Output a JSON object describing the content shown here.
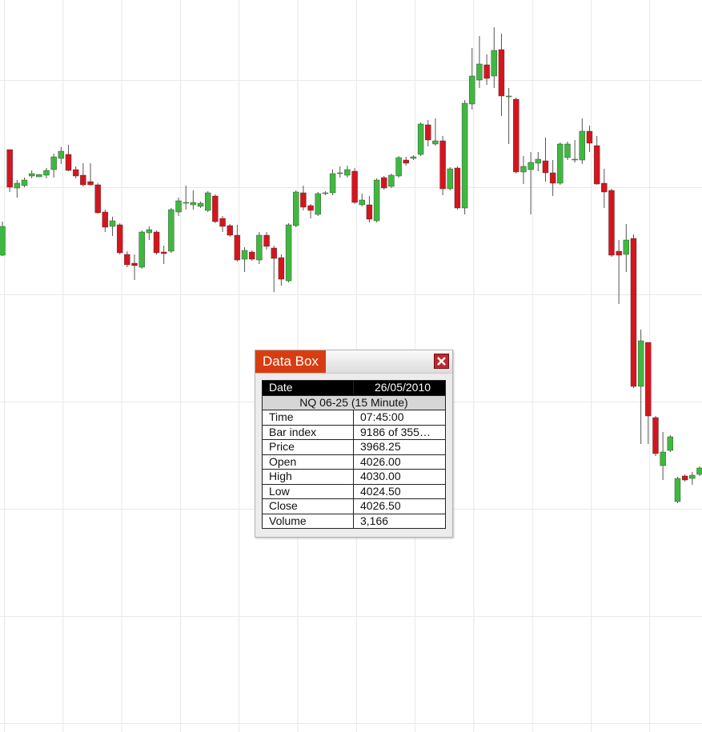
{
  "chart_data": {
    "type": "candlestick",
    "ylim": [
      3880,
      4063
    ],
    "up_color": "#3fb83f",
    "down_color": "#d5151d",
    "open": [
      3999.2,
      4025.6,
      4016,
      4016.6,
      4019,
      4018.8,
      4019.2,
      4020.6,
      4023.4,
      4024.4,
      4020.6,
      4019.2,
      4017.6,
      4016.8,
      4010,
      4006.4,
      4006.8,
      3999.4,
      3997.2,
      3996.2,
      4004.8,
      4005,
      4000,
      4000.2,
      4010,
      4012.4,
      4011.8,
      4011.4,
      4010.4,
      4014,
      4008.4,
      4006.6,
      4004.2,
      3998.2,
      4000,
      3998,
      4004.2,
      4001,
      3998.6,
      3992.8,
      4006.6,
      4014.8,
      4011.6,
      4009.4,
      4014.6,
      4014.8,
      4019.8,
      4019.2,
      4020.2,
      4011.8,
      4011.8,
      4007.8,
      4018.6,
      4016.4,
      4019,
      4023,
      4023.4,
      4024.4,
      4031.8,
      4027,
      4027.8,
      4015.8,
      4021,
      4011,
      4037,
      4043,
      4046.8,
      4044,
      4050.6,
      4039,
      4038.2,
      4020,
      4020.6,
      4022.2,
      4022.8,
      4019.8,
      4017.2,
      4023.6,
      4023,
      4023,
      4030.2,
      4026.6,
      4017.2,
      4015.4,
      4000.2,
      3999.4,
      4003.4,
      3966.4,
      3977.4,
      3958.6,
      3946.6,
      3950.4,
      3937.6,
      3944,
      3943.4,
      3944.4
    ],
    "high": [
      4007.6,
      4025.6,
      4018,
      4018.6,
      4020.4,
      4019.4,
      4021,
      4024.6,
      4026.2,
      4026.8,
      4021.4,
      4022.2,
      4022.2,
      4017.2,
      4010.6,
      4008.8,
      4007.2,
      4000.2,
      3999.4,
      4005.4,
      4006.4,
      4005.4,
      4001.6,
      4011,
      4013.6,
      4016.6,
      4015.4,
      4012.6,
      4015.2,
      4014.4,
      4009,
      4007,
      4006.8,
      4001.2,
      4000.4,
      4005,
      4005,
      4001.6,
      3999.4,
      4007.2,
      4015.4,
      4016.6,
      4012,
      4015,
      4015.2,
      4020.6,
      4021.4,
      4021.6,
      4021,
      4014.6,
      4014,
      4018.4,
      4019,
      4019.6,
      4024,
      4023.8,
      4024.2,
      4032.4,
      4033,
      4033.4,
      4029,
      4021.2,
      4021.4,
      4038,
      4051,
      4054,
      4049.4,
      4056.2,
      4054.6,
      4041,
      4038.6,
      4024,
      4025,
      4025,
      4028.6,
      4023,
      4027.4,
      4027.6,
      4028,
      4033.4,
      4031.6,
      4029,
      4020.8,
      4015.8,
      4003,
      4007,
      4004.4,
      3980.6,
      3977.4,
      3959,
      3955,
      3954.2,
      3943.8,
      3944.4,
      3945,
      3946.4
    ],
    "low": [
      3999,
      4015,
      4013.6,
      4016.2,
      4018.4,
      4018.8,
      4018.4,
      4018.6,
      4022,
      4020.2,
      4018.4,
      4016.4,
      4016.6,
      4009.6,
      4005,
      4004,
      3999.4,
      3996.2,
      3993,
      3995.8,
      4003,
      3999.4,
      3997,
      3999.8,
      4009,
      4010.6,
      4010.6,
      4011,
      4010,
      4007.2,
      4005,
      4003.8,
      3997.6,
      3995,
      3997.8,
      3997,
      4000.6,
      3990,
      3991.6,
      3992.4,
      4006.2,
      4010.4,
      4008.4,
      4009,
      4014.2,
      4014.2,
      4018.6,
      4018.6,
      4012,
      4011.4,
      4007.4,
      4007.4,
      4015.6,
      4016,
      4018.6,
      4021.6,
      4023,
      4024,
      4026.4,
      4026.6,
      4014.2,
      4015.4,
      4010.6,
      4009.4,
      4035.6,
      4041,
      4041.8,
      4041,
      4034,
      4027,
      4019.6,
      4017,
      4009.4,
      4020.2,
      4017.6,
      4014,
      4016.8,
      4023,
      4022.4,
      4022,
      4025,
      4016.8,
      4011,
      3998.8,
      3987,
      3995,
      3966,
      3952,
      3952,
      3949,
      3943,
      3950,
      3937.2,
      3942.6,
      3941.8,
      3944
    ],
    "close": [
      4006.4,
      4016.2,
      4017.2,
      4018,
      4019.6,
      4019.4,
      4020.4,
      4023.8,
      4025.2,
      4020.4,
      4019,
      4016.8,
      4016.8,
      4009.8,
      4006.2,
      4007.8,
      3999.8,
      3996.8,
      3996.6,
      4005,
      4005.6,
      3999.8,
      3999.6,
      4010.6,
      4012.8,
      4012.4,
      4012.4,
      4012.2,
      4014.8,
      4007.6,
      4006.4,
      4004.2,
      3998,
      4000.4,
      3998.2,
      4004.2,
      4001.4,
      3998.4,
      3993.2,
      4006.8,
      4015,
      4011.2,
      4010.4,
      4014.6,
      4014.8,
      4019.6,
      4019.8,
      4020.6,
      4012.4,
      4013,
      4008.2,
      4018,
      4016,
      4019.2,
      4023.6,
      4022.2,
      4023.8,
      4032,
      4028,
      4027.8,
      4015.8,
      4020.8,
      4011,
      4037.2,
      4044,
      4047,
      4043.4,
      4050.4,
      4039,
      4039,
      4020,
      4021.4,
      4022.4,
      4023.2,
      4019.8,
      4017.2,
      4027,
      4027,
      4023.2,
      4030.2,
      4027.2,
      4017,
      4015,
      3999.2,
      3999.2,
      4003,
      3966.4,
      3977.8,
      3959,
      3949.6,
      3950,
      3953.8,
      3943.4,
      3943,
      3944.2,
      3946
    ]
  },
  "data_box": {
    "title": "Data Box",
    "header": [
      "Date",
      "26/05/2010"
    ],
    "subheader": "NQ 06-25 (15 Minute)",
    "rows": [
      [
        "Time",
        "07:45:00"
      ],
      [
        "Bar index",
        "9186 of 355…"
      ],
      [
        "Price",
        "3968.25"
      ],
      [
        "Open",
        "4026.00"
      ],
      [
        "High",
        "4030.00"
      ],
      [
        "Low",
        "4024.50"
      ],
      [
        "Close",
        "4026.50"
      ],
      [
        "Volume",
        "3,166"
      ]
    ]
  }
}
